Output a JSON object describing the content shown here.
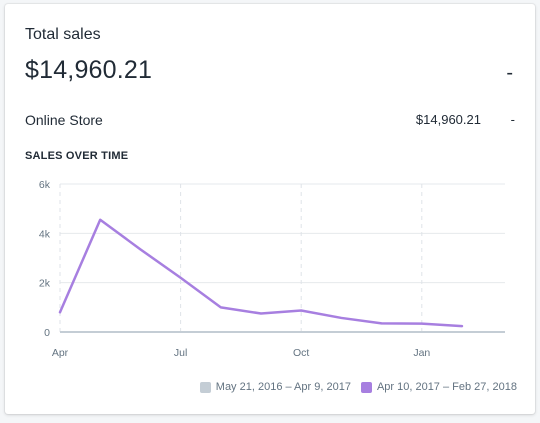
{
  "card": {
    "title": "Total sales",
    "total_value": "$14,960.21",
    "total_change": "-"
  },
  "breakdown": [
    {
      "label": "Online Store",
      "value": "$14,960.21",
      "change": "-"
    }
  ],
  "section_heading": "SALES OVER TIME",
  "colors": {
    "current": "#a77fe0",
    "previous": "#c4cdd5"
  },
  "legend": [
    {
      "label": "May 21, 2016 – Apr 9, 2017",
      "color": "#c4cdd5"
    },
    {
      "label": "Apr 10, 2017 – Feb 27, 2018",
      "color": "#a77fe0"
    }
  ],
  "chart_data": {
    "type": "line",
    "title": "SALES OVER TIME",
    "xlabel": "",
    "ylabel": "",
    "ylim": [
      0,
      6000
    ],
    "y_ticks": [
      {
        "value": 0,
        "label": "0"
      },
      {
        "value": 2000,
        "label": "2k"
      },
      {
        "value": 4000,
        "label": "4k"
      },
      {
        "value": 6000,
        "label": "6k"
      }
    ],
    "x_ticks": [
      "Apr",
      "Jul",
      "Oct",
      "Jan"
    ],
    "series": [
      {
        "name": "Apr 10, 2017 – Feb 27, 2018",
        "x": [
          "Apr",
          "May",
          "Jun",
          "Jul",
          "Aug",
          "Sep",
          "Oct",
          "Nov",
          "Dec",
          "Jan",
          "Feb"
        ],
        "values": [
          800,
          4550,
          3350,
          2200,
          1000,
          750,
          870,
          570,
          350,
          340,
          240
        ]
      },
      {
        "name": "May 21, 2016 – Apr 9, 2017",
        "x": [
          "Apr",
          "May",
          "Jun",
          "Jul",
          "Aug",
          "Sep",
          "Oct",
          "Nov",
          "Dec",
          "Jan",
          "Feb"
        ],
        "values": [
          0,
          0,
          0,
          0,
          0,
          0,
          0,
          0,
          0,
          0,
          0
        ]
      }
    ],
    "grid": true,
    "legend_position": "bottom-right"
  }
}
